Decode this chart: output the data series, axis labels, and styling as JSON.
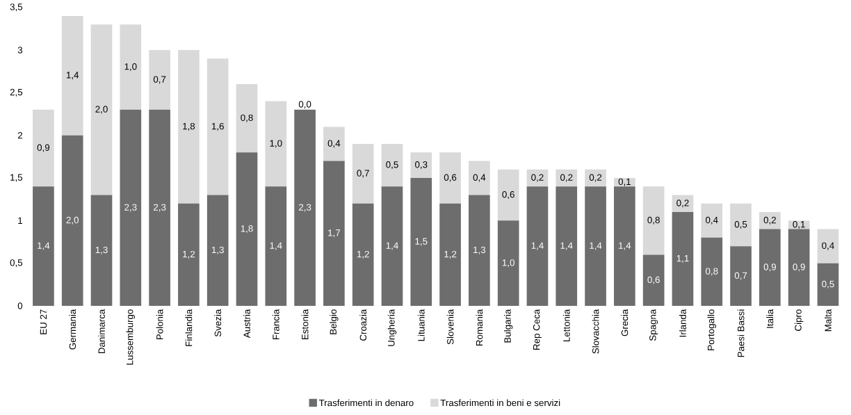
{
  "chart_data": {
    "type": "bar",
    "stacked": true,
    "categories": [
      "EU 27",
      "Germania",
      "Danimarca",
      "Lussemburgo",
      "Polonia",
      "Finlandia",
      "Svezia",
      "Austria",
      "Francia",
      "Estonia",
      "Belgio",
      "Croazia",
      "Ungheria",
      "Lituania",
      "Slovenia",
      "Romania",
      "Bulgaria",
      "Rep Ceca",
      "Lettonia",
      "Slovacchia",
      "Grecia",
      "Spagna",
      "Irlanda",
      "Portogallo",
      "Paesi Bassi",
      "Italia",
      "Cipro",
      "Malta"
    ],
    "series": [
      {
        "name": "Trasferimenti in denaro",
        "color": "#6d6d6d",
        "values": [
          1.4,
          2.0,
          1.3,
          2.3,
          2.3,
          1.2,
          1.3,
          1.8,
          1.4,
          2.3,
          1.7,
          1.2,
          1.4,
          1.5,
          1.2,
          1.3,
          1.0,
          1.4,
          1.4,
          1.4,
          1.4,
          0.6,
          1.1,
          0.8,
          0.7,
          0.9,
          0.9,
          0.5
        ],
        "value_labels": [
          "1,4",
          "2,0",
          "1,3",
          "2,3",
          "2,3",
          "1,2",
          "1,3",
          "1,8",
          "1,4",
          "2,3",
          "1,7",
          "1,2",
          "1,4",
          "1,5",
          "1,2",
          "1,3",
          "1,0",
          "1,4",
          "1,4",
          "1,4",
          "1,4",
          "0,6",
          "1,1",
          "0,8",
          "0,7",
          "0,9",
          "0,9",
          "0,5"
        ]
      },
      {
        "name": "Trasferimenti in beni e servizi",
        "color": "#d9d9d9",
        "values": [
          0.9,
          1.4,
          2.0,
          1.0,
          0.7,
          1.8,
          1.6,
          0.8,
          1.0,
          0.0,
          0.4,
          0.7,
          0.5,
          0.3,
          0.6,
          0.4,
          0.6,
          0.2,
          0.2,
          0.2,
          0.1,
          0.8,
          0.2,
          0.4,
          0.5,
          0.2,
          0.1,
          0.4
        ],
        "value_labels": [
          "0,9",
          "1,4",
          "2,0",
          "1,0",
          "0,7",
          "1,8",
          "1,6",
          "0,8",
          "1,0",
          "0,0",
          "0,4",
          "0,7",
          "0,5",
          "0,3",
          "0,6",
          "0,4",
          "0,6",
          "0,2",
          "0,2",
          "0,2",
          "0,1",
          "0,8",
          "0,2",
          "0,4",
          "0,5",
          "0,2",
          "0,1",
          "0,4"
        ]
      }
    ],
    "ylim": [
      0,
      3.5
    ],
    "yticks": [
      0,
      {
        "value": 0.5,
        "label": "0,5"
      },
      1,
      {
        "value": 1.5,
        "label": "1,5"
      },
      2,
      {
        "value": 2.5,
        "label": "2,5"
      },
      3,
      {
        "value": 3.5,
        "label": "3,5"
      }
    ],
    "legend": "bottom",
    "grid": false
  }
}
